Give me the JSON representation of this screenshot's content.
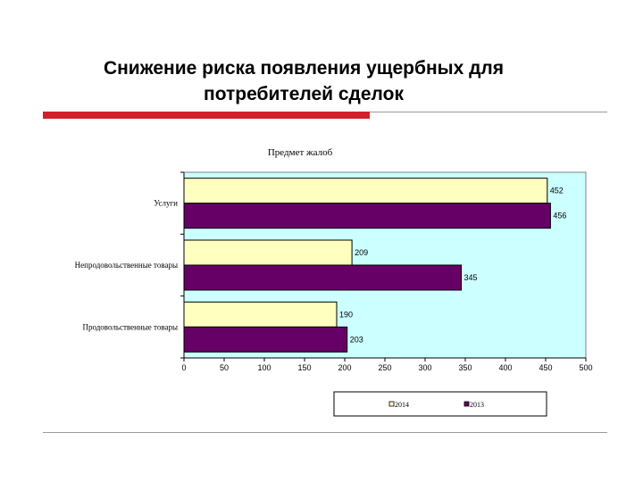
{
  "slide": {
    "title_line1": "Снижение риска появления  ущербных для",
    "title_line2": "потребителей сделок"
  },
  "colors": {
    "accent": "#d0202a",
    "plot_background": "#ccffff",
    "series_2014": "#ffffc0",
    "series_2013": "#660066"
  },
  "chart_data": {
    "type": "bar",
    "orientation": "horizontal",
    "title": "Предмет жалоб",
    "categories": [
      "Услуги",
      "Непродовольственные товары",
      "Продовольственные товары"
    ],
    "series": [
      {
        "name": "2014",
        "values": [
          452,
          209,
          190
        ]
      },
      {
        "name": "2013",
        "values": [
          456,
          345,
          203
        ]
      }
    ],
    "xlim": [
      0,
      500
    ],
    "xticks": [
      0,
      50,
      100,
      150,
      200,
      250,
      300,
      350,
      400,
      450,
      500
    ],
    "data_labels": true,
    "grid": false,
    "legend_position": "bottom"
  }
}
